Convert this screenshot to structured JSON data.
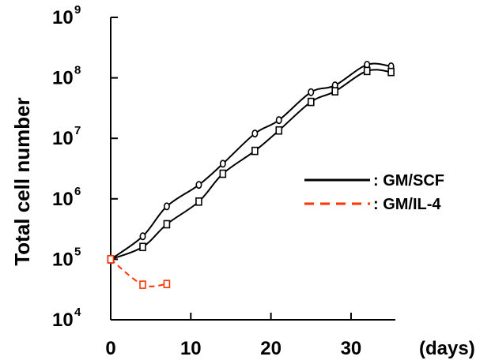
{
  "chart_data": {
    "type": "line",
    "title": "",
    "xlabel": "(days)",
    "ylabel": "Total cell number",
    "y_scale": "log",
    "xlim": [
      0,
      35
    ],
    "ylim": [
      10000,
      1000000000
    ],
    "x_ticks": [
      0,
      10,
      20,
      30
    ],
    "y_ticks": [
      {
        "value": 10000,
        "base": "10",
        "exp": "4"
      },
      {
        "value": 100000,
        "base": "10",
        "exp": "5"
      },
      {
        "value": 1000000,
        "base": "10",
        "exp": "6"
      },
      {
        "value": 10000000,
        "base": "10",
        "exp": "7"
      },
      {
        "value": 100000000,
        "base": "10",
        "exp": "8"
      },
      {
        "value": 1000000000,
        "base": "10",
        "exp": "9"
      }
    ],
    "grid": false,
    "legend_position": "center-right",
    "series": [
      {
        "name": ": GM/SCF",
        "color": "#000000",
        "dash": "solid",
        "marker": "circle",
        "x": [
          0,
          4,
          7,
          11,
          14,
          18,
          21,
          25,
          28,
          32,
          35
        ],
        "y": [
          100000,
          240000,
          750000,
          1700000,
          3800000,
          12000000,
          20000000,
          58000000,
          75000000,
          165000000,
          155000000
        ]
      },
      {
        "name": "",
        "color": "#000000",
        "dash": "solid",
        "marker": "square",
        "x": [
          0,
          4,
          7,
          11,
          14,
          18,
          21,
          25,
          28,
          32,
          35
        ],
        "y": [
          100000,
          160000,
          380000,
          900000,
          2600000,
          6200000,
          13500000,
          40000000,
          60000000,
          130000000,
          125000000
        ]
      },
      {
        "name": ": GM/IL-4",
        "color": "#ff3300",
        "dash": "dashed",
        "marker": "square",
        "x": [
          0,
          4,
          7
        ],
        "y": [
          100000,
          38000,
          39000
        ]
      }
    ]
  }
}
